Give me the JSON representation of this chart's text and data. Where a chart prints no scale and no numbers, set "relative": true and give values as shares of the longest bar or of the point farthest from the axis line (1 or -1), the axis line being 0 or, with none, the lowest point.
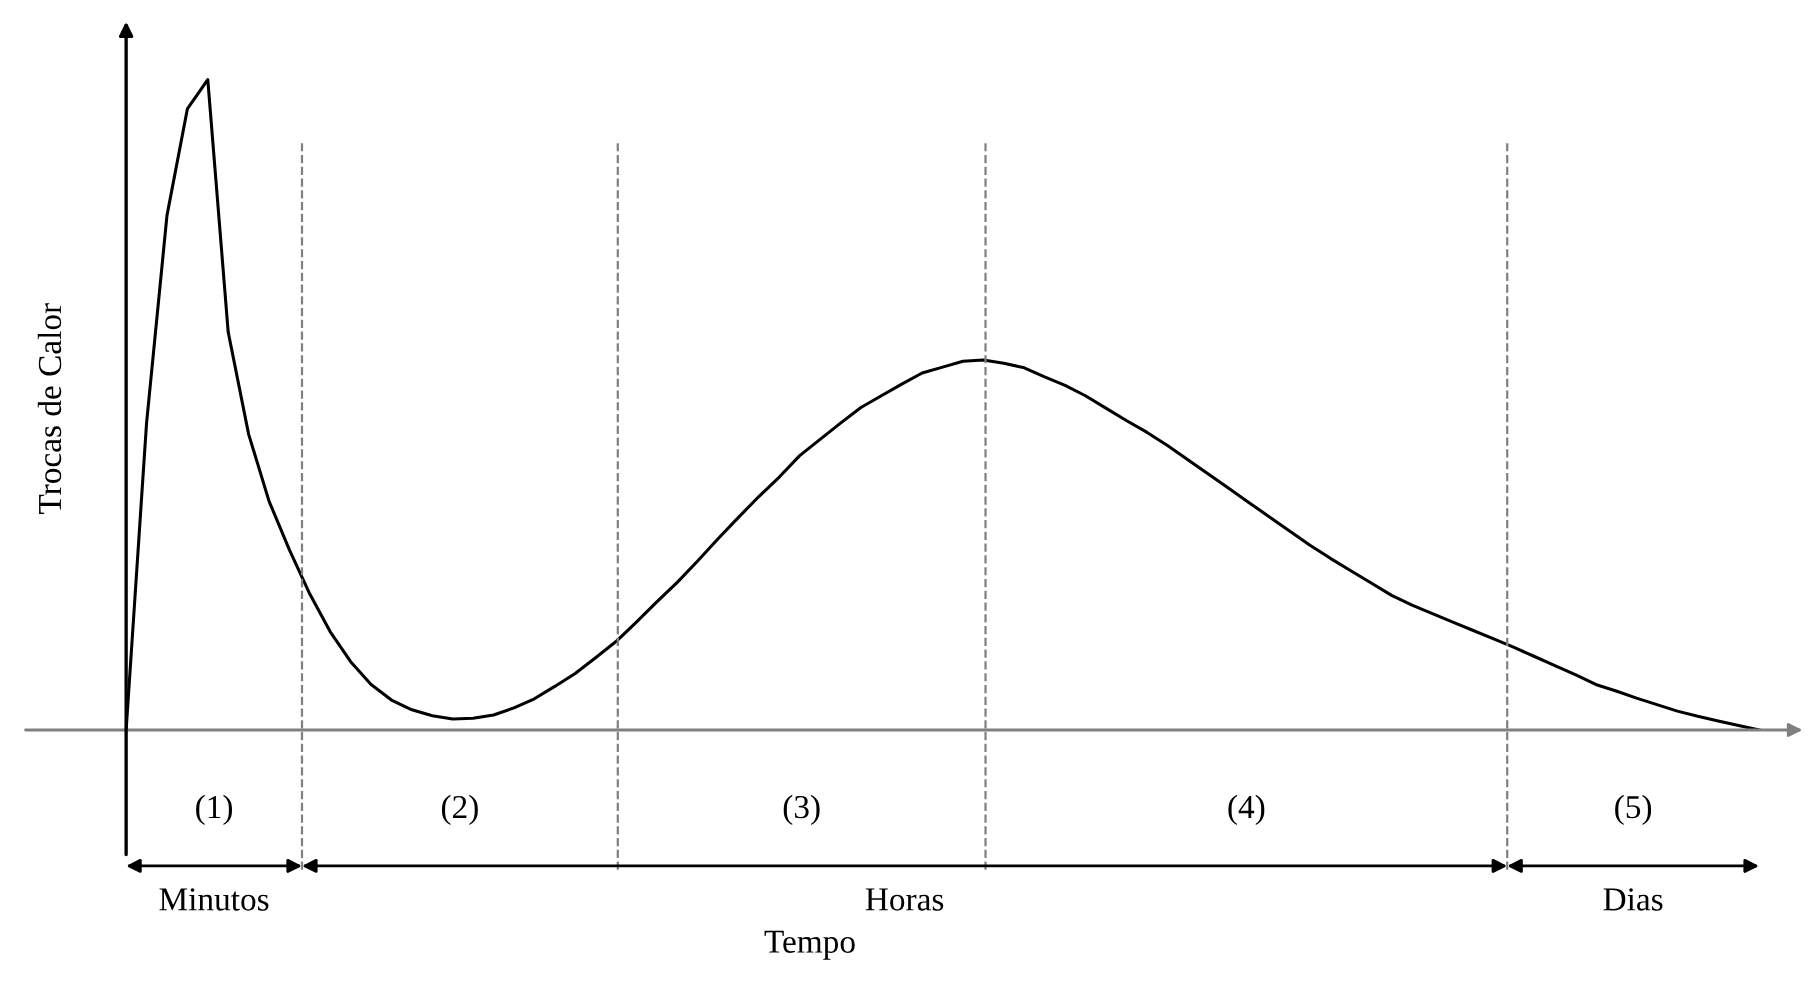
{
  "chart_data": {
    "type": "line",
    "relative": true,
    "ylabel": "Trocas de Calor",
    "categories": [
      null,
      null,
      null,
      null,
      null,
      null,
      null,
      null,
      null,
      null,
      null,
      null,
      null,
      null,
      null,
      null,
      null,
      null,
      null,
      null,
      null,
      null,
      null,
      null,
      null,
      null,
      null,
      null,
      null,
      null,
      null,
      null,
      null,
      null,
      null,
      null,
      null,
      null,
      null,
      null,
      null,
      null,
      null,
      null,
      null,
      null,
      null,
      null,
      null,
      null,
      null,
      null,
      null,
      null,
      null,
      null,
      null,
      null,
      null,
      null,
      null,
      null,
      null,
      null,
      null,
      null,
      null,
      null,
      null,
      null,
      null,
      null,
      null,
      null,
      null,
      null,
      null,
      null,
      null,
      null,
      null
    ],
    "series": [
      {
        "color": "#000000",
        "values": [
          0,
          0.472,
          0.791,
          0.955,
          1,
          0.612,
          0.455,
          0.352,
          0.277,
          0.209,
          0.151,
          0.105,
          0.07,
          0.046,
          0.031,
          0.022,
          0.017,
          0.018,
          0.023,
          0.034,
          0.048,
          0.067,
          0.087,
          0.111,
          0.136,
          0.166,
          0.197,
          0.227,
          0.26,
          0.294,
          0.327,
          0.359,
          0.389,
          0.422,
          0.447,
          0.472,
          0.496,
          0.514,
          0.532,
          0.549,
          0.558,
          0.567,
          0.569,
          0.564,
          0.557,
          0.543,
          0.53,
          0.514,
          0.495,
          0.476,
          0.458,
          0.438,
          0.416,
          0.394,
          0.372,
          0.35,
          0.328,
          0.306,
          0.284,
          0.264,
          0.245,
          0.226,
          0.207,
          0.192,
          0.179,
          0.166,
          0.153,
          0.14,
          0.127,
          0.113,
          0.099,
          0.085,
          0.07,
          0.06,
          0.049,
          0.039,
          0.029,
          0.021,
          0.014,
          0.007,
          0
        ]
      }
    ],
    "legend": false,
    "marker": "none",
    "line_style": "solid",
    "annotations": [
      "(1)",
      "(2)",
      "(3)",
      "(4)",
      "(5)",
      "Minutos",
      "Horas",
      "Dias",
      "Tempo"
    ]
  }
}
